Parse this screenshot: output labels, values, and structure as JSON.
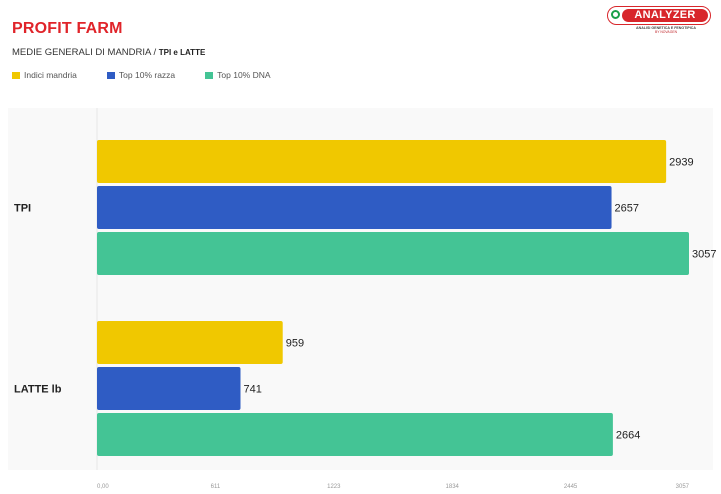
{
  "header": {
    "brand": "PROFIT FARM",
    "subtitle_main": "MEDIE GENERALI DI MANDRIA /",
    "subtitle_strong": "TPI e LATTE"
  },
  "logo": {
    "text": "ANALYZER",
    "tagline": "ANALISI GENETICA E FENOTIPICA",
    "byline": "BY NOVAGEN",
    "icon": "magnifier-icon"
  },
  "chart_data": {
    "type": "bar",
    "orientation": "horizontal",
    "categories": [
      "TPI",
      "LATTE lb"
    ],
    "series": [
      {
        "name": "Indici mandria",
        "color": "#f0c800",
        "values": [
          2939,
          959
        ]
      },
      {
        "name": "Top 10% razza",
        "color": "#2f5cc4",
        "values": [
          2657,
          741
        ]
      },
      {
        "name": "Top 10% DNA",
        "color": "#44c495",
        "values": [
          3057,
          2664
        ]
      }
    ],
    "xlim": [
      0,
      3057
    ],
    "xticks": [
      "0,00",
      "611",
      "1223",
      "1834",
      "2445",
      "3057"
    ],
    "legend_position": "top-left",
    "grid": false
  }
}
